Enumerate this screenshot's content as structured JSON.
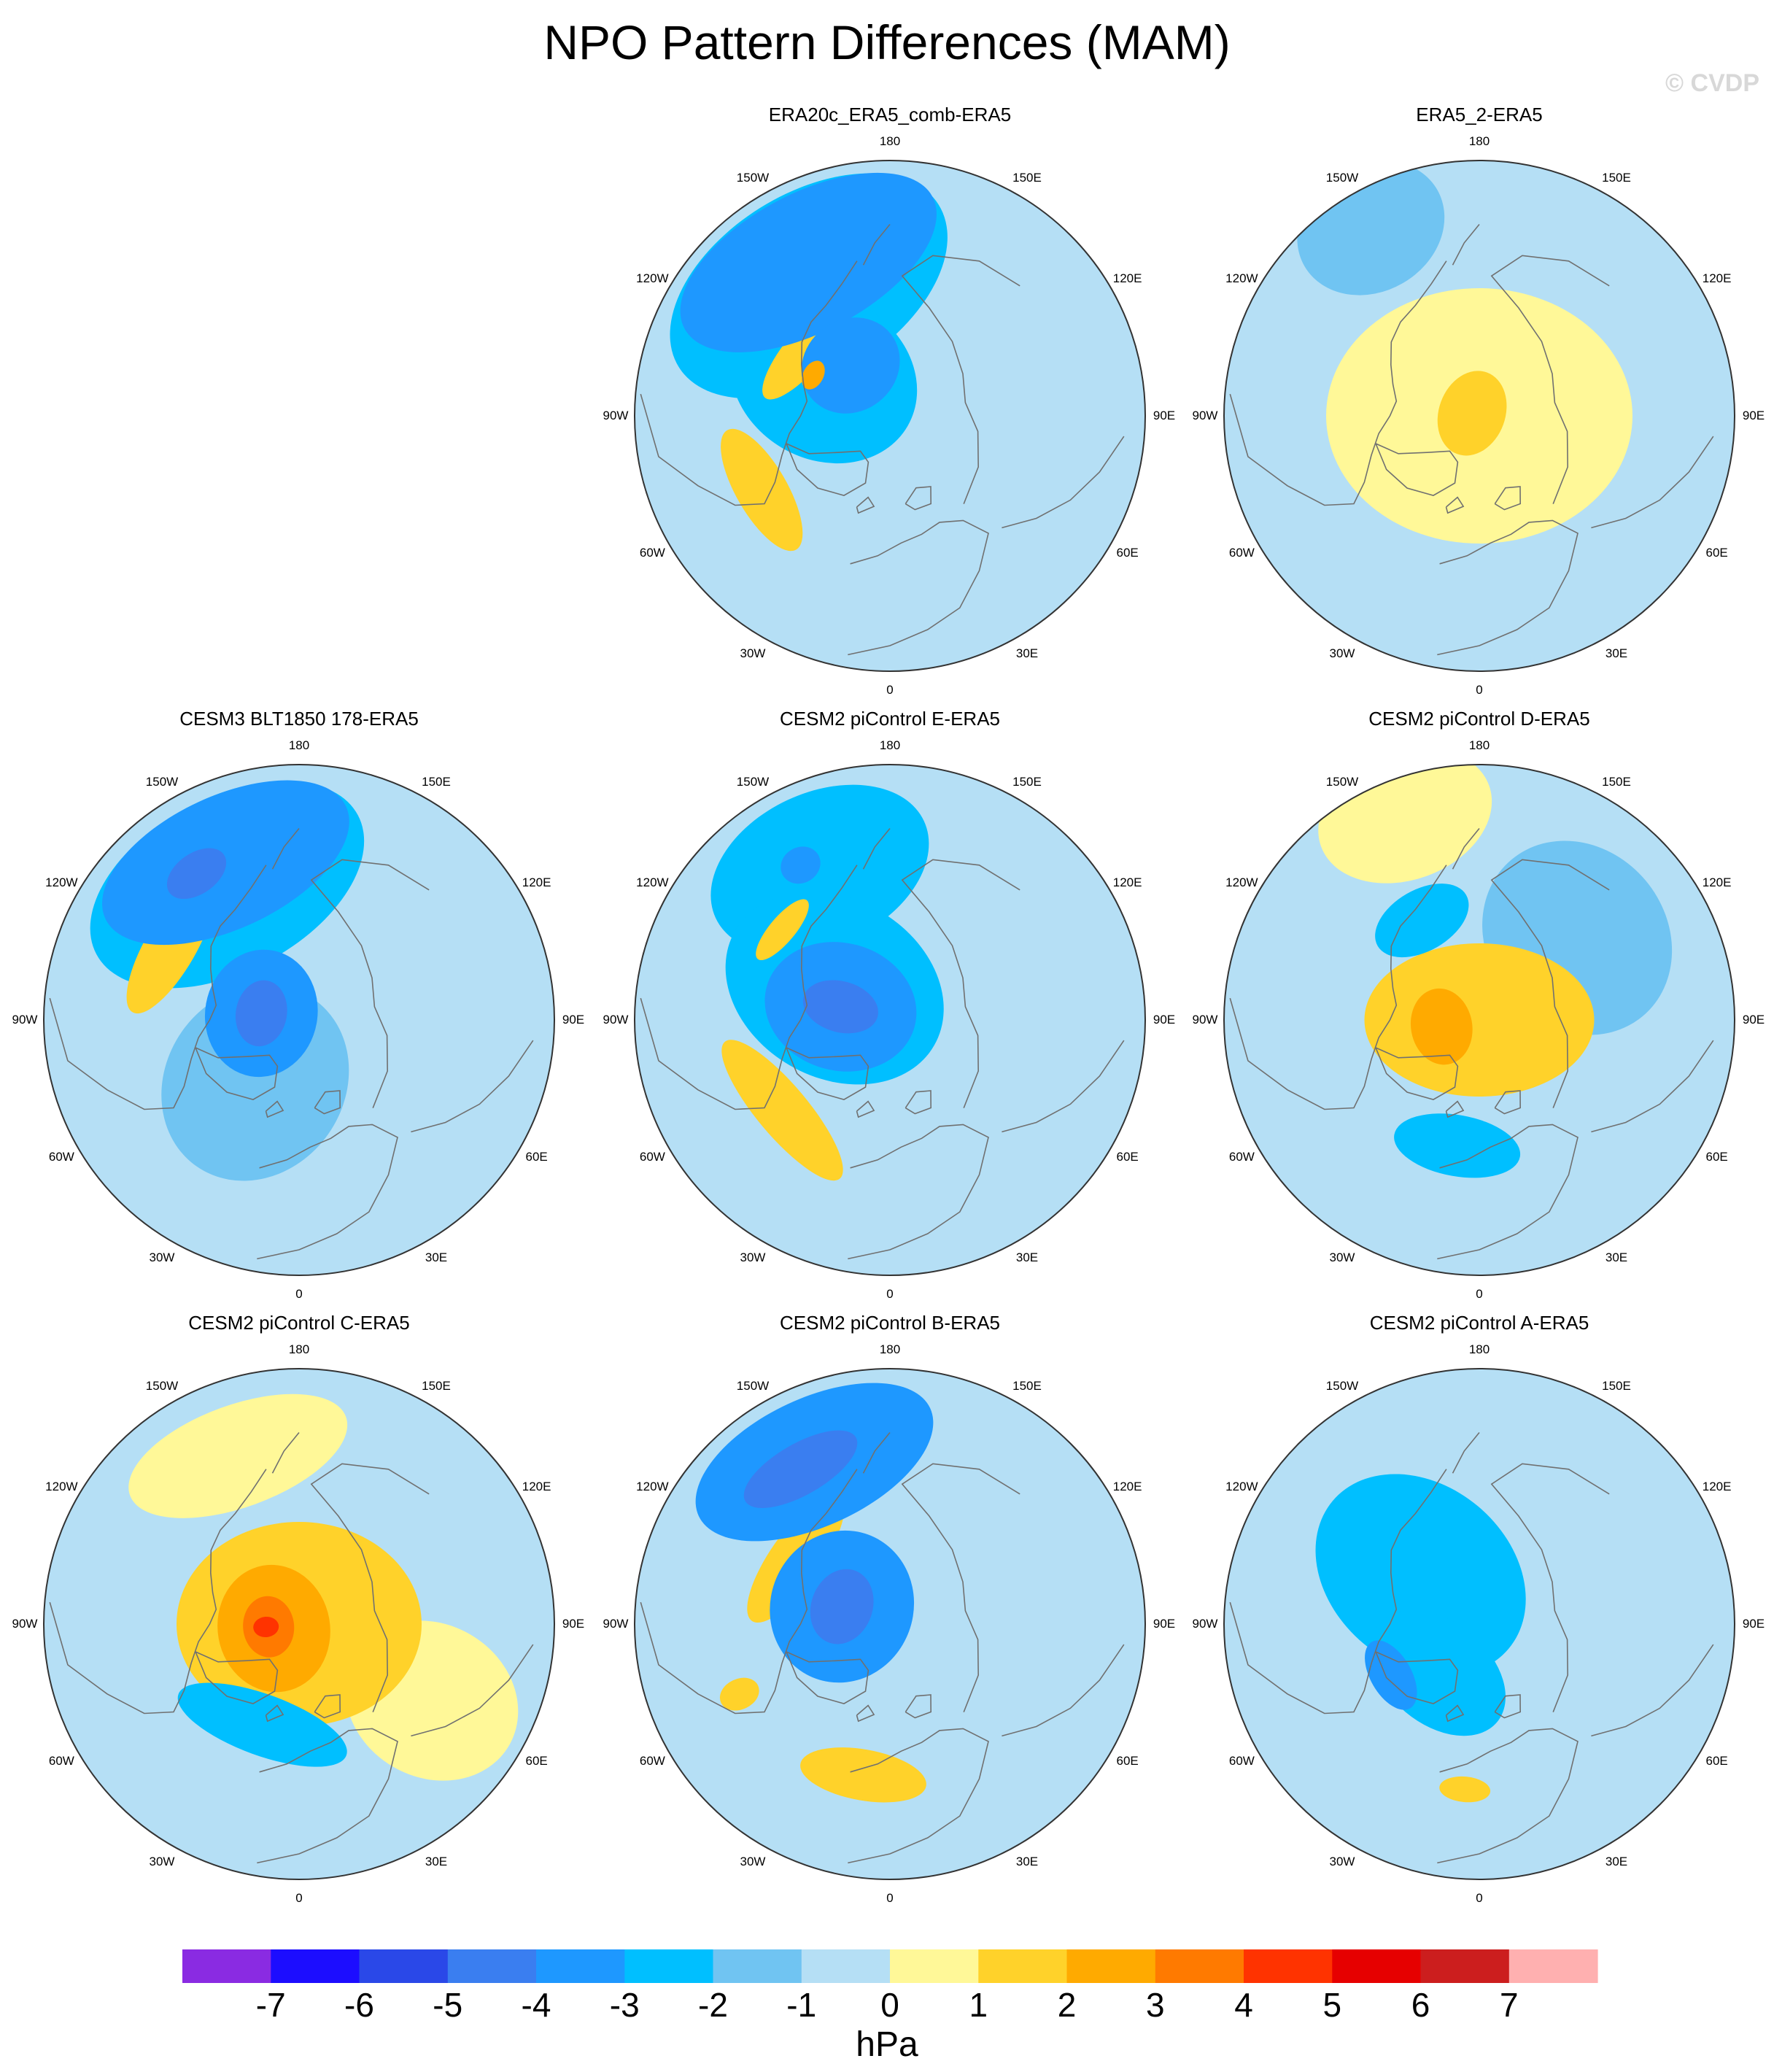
{
  "figure": {
    "title": "NPO Pattern Differences (MAM)",
    "watermark": "© CVDP",
    "variable_units": "hPa",
    "projection": "polar stereographic, North Pole"
  },
  "panels": [
    {
      "id": "p1",
      "title": "ERA20c_ERA5_comb-ERA5",
      "row": 0,
      "col": 1,
      "features": [
        {
          "lon": -152,
          "r": 0.68,
          "lvl": -3,
          "a": 0.55,
          "b": 0.27
        },
        {
          "lon": -148,
          "r": 0.6,
          "lvl": -2,
          "a": 0.6,
          "b": 0.36
        },
        {
          "lon": -142,
          "r": 0.25,
          "lvl": -3,
          "a": 0.2,
          "b": 0.18
        },
        {
          "lon": -120,
          "r": 0.3,
          "lvl": -2,
          "a": 0.32,
          "b": 0.38
        },
        {
          "lon": -130,
          "r": 0.42,
          "lvl": 2,
          "a": 0.26,
          "b": 0.08
        },
        {
          "lon": -118,
          "r": 0.34,
          "lvl": 3,
          "a": 0.06,
          "b": 0.04
        },
        {
          "lon": -60,
          "r": 0.58,
          "lvl": 2,
          "a": 0.27,
          "b": 0.1
        }
      ]
    },
    {
      "id": "p2",
      "title": "ERA5_2-ERA5",
      "row": 0,
      "col": 2,
      "features": [
        {
          "lon": 0,
          "r": 0,
          "lvl": 1,
          "a": 0.6,
          "b": 0.5
        },
        {
          "lon": -110,
          "r": 0.03,
          "lvl": 2,
          "a": 0.17,
          "b": 0.13
        },
        {
          "lon": -150,
          "r": 0.85,
          "lvl": -1,
          "a": 0.3,
          "b": 0.25
        }
      ]
    },
    {
      "id": "p3",
      "title": "CESM3 BLT1850 178-ERA5",
      "row": 1,
      "col": 0,
      "features": [
        {
          "lon": -155,
          "r": 0.68,
          "lvl": -3,
          "a": 0.52,
          "b": 0.26
        },
        {
          "lon": -152,
          "r": 0.6,
          "lvl": -2,
          "a": 0.58,
          "b": 0.34
        },
        {
          "lon": -145,
          "r": 0.7,
          "lvl": -4,
          "a": 0.13,
          "b": 0.08
        },
        {
          "lon": -100,
          "r": 0.15,
          "lvl": -3,
          "a": 0.25,
          "b": 0.22
        },
        {
          "lon": -100,
          "r": 0.15,
          "lvl": -4,
          "a": 0.13,
          "b": 0.1
        },
        {
          "lon": -120,
          "r": 0.58,
          "lvl": 2,
          "a": 0.3,
          "b": 0.1
        },
        {
          "lon": -35,
          "r": 0.3,
          "lvl": -1,
          "a": 0.35,
          "b": 0.4
        }
      ]
    },
    {
      "id": "p4",
      "title": "CESM2 piControl E-ERA5",
      "row": 1,
      "col": 1,
      "features": [
        {
          "lon": -155,
          "r": 0.65,
          "lvl": -2,
          "a": 0.45,
          "b": 0.3
        },
        {
          "lon": -150,
          "r": 0.7,
          "lvl": -3,
          "a": 0.08,
          "b": 0.07
        },
        {
          "lon": -120,
          "r": 0.25,
          "lvl": -2,
          "a": 0.35,
          "b": 0.45
        },
        {
          "lon": -105,
          "r": 0.2,
          "lvl": -3,
          "a": 0.25,
          "b": 0.3
        },
        {
          "lon": -105,
          "r": 0.2,
          "lvl": -4,
          "a": 0.1,
          "b": 0.15
        },
        {
          "lon": -50,
          "r": 0.55,
          "lvl": 2,
          "a": 0.35,
          "b": 0.1
        },
        {
          "lon": -130,
          "r": 0.55,
          "lvl": 2,
          "a": 0.15,
          "b": 0.05
        }
      ]
    },
    {
      "id": "p5",
      "title": "CESM2 piControl D-ERA5",
      "row": 1,
      "col": 2,
      "features": [
        {
          "lon": 0,
          "r": 0,
          "lvl": 2,
          "a": 0.45,
          "b": 0.3
        },
        {
          "lon": -80,
          "r": 0.15,
          "lvl": 3,
          "a": 0.15,
          "b": 0.12
        },
        {
          "lon": -150,
          "r": 0.45,
          "lvl": -2,
          "a": 0.2,
          "b": 0.12
        },
        {
          "lon": -10,
          "r": 0.5,
          "lvl": -2,
          "a": 0.25,
          "b": 0.12
        },
        {
          "lon": -160,
          "r": 0.85,
          "lvl": 1,
          "a": 0.35,
          "b": 0.25
        },
        {
          "lon": 130,
          "r": 0.5,
          "lvl": -1,
          "a": 0.4,
          "b": 0.35
        }
      ]
    },
    {
      "id": "p6",
      "title": "CESM2 piControl C-ERA5",
      "row": 2,
      "col": 0,
      "features": [
        {
          "lon": 0,
          "r": 0,
          "lvl": 2,
          "a": 0.48,
          "b": 0.4
        },
        {
          "lon": -80,
          "r": 0.1,
          "lvl": 3,
          "a": 0.25,
          "b": 0.22
        },
        {
          "lon": -85,
          "r": 0.12,
          "lvl": 4,
          "a": 0.12,
          "b": 0.1
        },
        {
          "lon": -85,
          "r": 0.13,
          "lvl": 5,
          "a": 0.04,
          "b": 0.05
        },
        {
          "lon": -20,
          "r": 0.42,
          "lvl": -2,
          "a": 0.35,
          "b": 0.12
        },
        {
          "lon": -160,
          "r": 0.7,
          "lvl": 1,
          "a": 0.45,
          "b": 0.2
        },
        {
          "lon": 60,
          "r": 0.6,
          "lvl": 1,
          "a": 0.3,
          "b": 0.35
        }
      ]
    },
    {
      "id": "p7",
      "title": "CESM2 piControl B-ERA5",
      "row": 2,
      "col": 1,
      "features": [
        {
          "lon": -155,
          "r": 0.7,
          "lvl": -3,
          "a": 0.5,
          "b": 0.25
        },
        {
          "lon": -150,
          "r": 0.7,
          "lvl": -4,
          "a": 0.25,
          "b": 0.1
        },
        {
          "lon": -110,
          "r": 0.2,
          "lvl": -3,
          "a": 0.3,
          "b": 0.28
        },
        {
          "lon": -110,
          "r": 0.2,
          "lvl": -4,
          "a": 0.15,
          "b": 0.12
        },
        {
          "lon": -125,
          "r": 0.45,
          "lvl": 2,
          "a": 0.3,
          "b": 0.1
        },
        {
          "lon": -10,
          "r": 0.6,
          "lvl": 2,
          "a": 0.25,
          "b": 0.1
        },
        {
          "lon": -65,
          "r": 0.65,
          "lvl": 2,
          "a": 0.06,
          "b": 0.08
        }
      ]
    },
    {
      "id": "p8",
      "title": "CESM2 piControl A-ERA5",
      "row": 2,
      "col": 2,
      "features": [
        {
          "lon": -130,
          "r": 0.3,
          "lvl": -2,
          "a": 0.35,
          "b": 0.45
        },
        {
          "lon": -40,
          "r": 0.25,
          "lvl": -2,
          "a": 0.3,
          "b": 0.2
        },
        {
          "lon": -60,
          "r": 0.4,
          "lvl": -3,
          "a": 0.15,
          "b": 0.08
        },
        {
          "lon": -5,
          "r": 0.65,
          "lvl": 2,
          "a": 0.1,
          "b": 0.05
        }
      ]
    }
  ],
  "longitude_labels": [
    "180",
    "150E",
    "120E",
    "90E",
    "60E",
    "30E",
    "0",
    "30W",
    "60W",
    "90W",
    "120W",
    "150W"
  ],
  "colorbar": {
    "labels": [
      "-7",
      "-6",
      "-5",
      "-4",
      "-3",
      "-2",
      "-1",
      "0",
      "1",
      "2",
      "3",
      "4",
      "5",
      "6",
      "7"
    ],
    "colors": [
      "#8a2be2",
      "#1c0dff",
      "#2a48e8",
      "#3a7ef0",
      "#1e98ff",
      "#00bfff",
      "#70c4f2",
      "#b5dff5",
      "#fff898",
      "#ffd22a",
      "#ffaa00",
      "#ff7a00",
      "#ff3300",
      "#e60000",
      "#cc1e1e",
      "#ffb0b0"
    ],
    "units": "hPa"
  }
}
